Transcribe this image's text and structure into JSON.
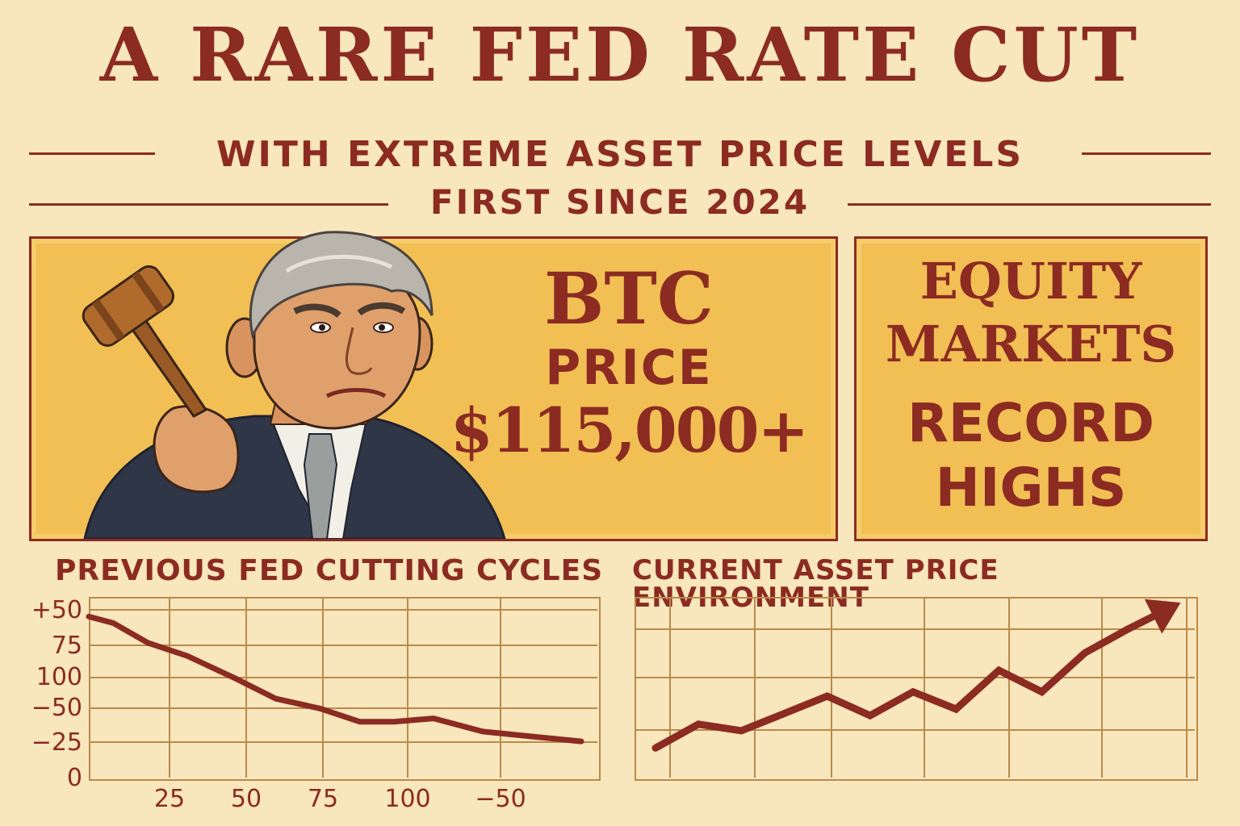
{
  "header": {
    "title": "A RARE FED RATE CUT",
    "subtitle": "WITH EXTREME ASSET PRICE LEVELS",
    "subtitle2": "FIRST SINCE 2024"
  },
  "btc_panel": {
    "label": "BTC",
    "sub": "PRICE",
    "value": "$115,000+"
  },
  "equity_panel": {
    "line1": "EQUITY",
    "line2": "MARKETS",
    "line3": "RECORD",
    "line4": "HIGHS"
  },
  "colors": {
    "background": "#f8e6bd",
    "accent": "#8b2b22",
    "panel": "#f2bf55",
    "grid": "#b98a4a"
  },
  "chart_data": [
    {
      "type": "line",
      "title": "PREVIOUS FED CUTTING CYCLES",
      "y_tick_labels": [
        "+50",
        "75",
        "100",
        "−50",
        "−25",
        "0"
      ],
      "x_tick_labels": [
        "25",
        "50",
        "75",
        "100",
        "−50"
      ],
      "x": [
        0,
        0.05,
        0.12,
        0.2,
        0.3,
        0.38,
        0.47,
        0.55,
        0.62,
        0.7,
        0.8,
        1.0
      ],
      "y": [
        5.0,
        4.8,
        4.2,
        3.8,
        3.1,
        2.5,
        2.2,
        1.8,
        1.8,
        1.9,
        1.5,
        1.2
      ],
      "ylim": [
        0,
        5.5
      ],
      "grid": true
    },
    {
      "type": "line",
      "title": "CURRENT ASSET PRICE ENVIRONMENT",
      "x": [
        0,
        1,
        2,
        3,
        4,
        5,
        6,
        7,
        8,
        9,
        10,
        11,
        12
      ],
      "y": [
        1.0,
        2.1,
        1.8,
        2.6,
        3.4,
        2.5,
        3.6,
        2.8,
        4.6,
        3.6,
        5.4,
        6.5,
        7.5
      ],
      "ylim": [
        0,
        8
      ],
      "grid": true,
      "arrow_at_end": true
    }
  ]
}
